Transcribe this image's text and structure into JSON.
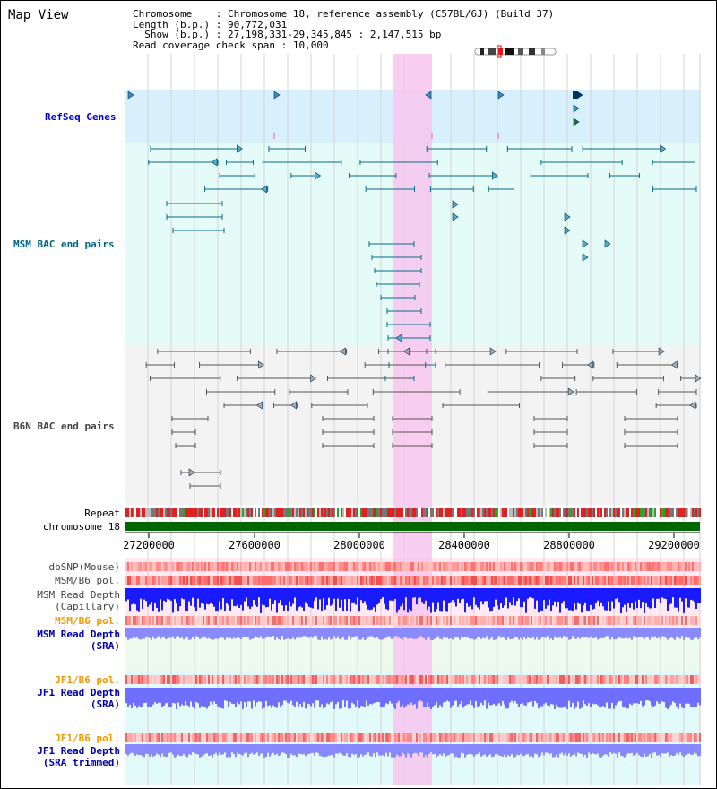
{
  "app_title": "Map View",
  "info": {
    "chromosome_label": "Chromosome",
    "chromosome_value": "Chromosome 18, reference assembly (C57BL/6J) (Build 37)",
    "length_label": "Length (b.p.)",
    "length_value": "90,772,031",
    "show_label": "Show (b.p.)",
    "show_value": "27,198,331-29,345,845 : 2,147,515 bp",
    "coverage_label": "Read coverage check span",
    "coverage_value": "10,000"
  },
  "tracks": {
    "refseq": "RefSeq Genes",
    "msm_bac": "MSM BAC end pairs",
    "b6n_bac": "B6N BAC end pairs",
    "repeat": "Repeat",
    "chromosome": "chromosome 18",
    "dbsnp": "dbSNP(Mouse)",
    "msm_b6_pol": "MSM/B6 pol.",
    "msm_read_depth_cap_1": "MSM Read Depth",
    "msm_read_depth_cap_2": "(Capillary)",
    "msm_b6_pol_sra": "MSM/B6 pol.",
    "msm_read_depth_sra_1": "MSM Read Depth",
    "msm_read_depth_sra_2": "(SRA)",
    "jf1_b6_pol": "JF1/B6 pol.",
    "jf1_read_depth_1": "JF1 Read Depth",
    "jf1_read_depth_2": "(SRA)",
    "jf1_b6_pol_trim": "JF1/B6 pol.",
    "jf1_read_depth_trim_1": "JF1 Read Depth",
    "jf1_read_depth_trim_2": "(SRA trimmed)"
  },
  "axis_ticks": [
    "27200000",
    "27600000",
    "28000000",
    "28400000",
    "28800000",
    "29200000"
  ],
  "colors": {
    "refseq_label": "#0000cc",
    "msm_label": "#006688",
    "b6n_label": "#444444",
    "orange_label": "#ee9900",
    "blue_label": "#0000aa",
    "highlight": "#f7c6ee",
    "chromosome_bar": "#006600"
  }
}
